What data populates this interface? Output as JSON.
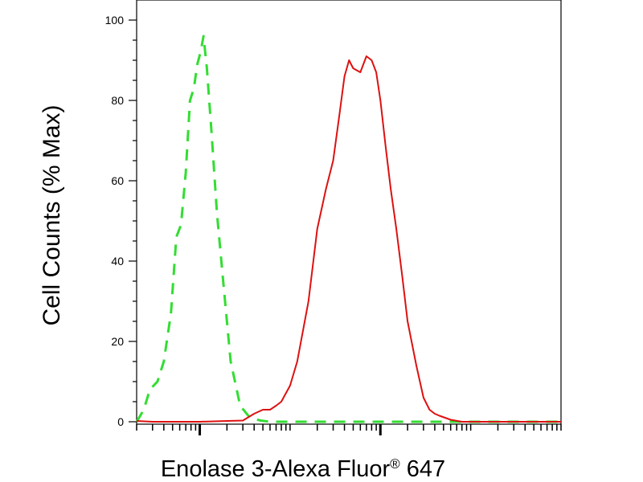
{
  "chart_data": {
    "type": "line",
    "title": "",
    "xlabel": "Enolase 3-Alexa Fluor",
    "xlabel_superscript": "®",
    "xlabel_suffix": " 647",
    "ylabel": "Cell Counts (% Max)",
    "x_scale": "log",
    "xlim": [
      0.2,
      10000
    ],
    "ylim": [
      0,
      100
    ],
    "yticks": [
      0,
      20,
      40,
      60,
      80,
      100
    ],
    "ytick_labels": [
      "0",
      "20",
      "40",
      "60",
      "80",
      "100"
    ],
    "xticks_major": [
      1,
      100
    ],
    "grid": false,
    "legend": "none",
    "series": [
      {
        "color": "#33dd33",
        "dash": "dashed",
        "x": [
          0.2,
          0.24,
          0.28,
          0.34,
          0.4,
          0.48,
          0.55,
          0.62,
          0.7,
          0.78,
          0.86,
          0.94,
          1.02,
          1.1,
          1.2,
          1.35,
          1.55,
          1.8,
          2.2,
          2.8,
          3.6,
          4.7,
          6,
          8,
          12,
          30,
          100,
          1000,
          10000
        ],
        "y": [
          0,
          3,
          8,
          10,
          15,
          27,
          46,
          49,
          62,
          80,
          83,
          89,
          92,
          96,
          88,
          72,
          52,
          36,
          15,
          4,
          1,
          0.3,
          0,
          0,
          0,
          0,
          0,
          0,
          0
        ]
      },
      {
        "color": "#dd1111",
        "dash": "solid",
        "x": [
          0.2,
          0.3,
          0.5,
          1,
          2,
          3,
          4,
          5,
          6,
          7,
          8,
          10,
          12,
          16,
          20,
          25,
          30,
          35,
          40,
          45,
          50,
          60,
          70,
          80,
          90,
          100,
          115,
          130,
          150,
          175,
          200,
          250,
          300,
          350,
          400,
          450,
          600,
          800,
          1500,
          5000,
          10000
        ],
        "y": [
          0.2,
          0,
          0,
          0,
          0.2,
          0.3,
          2,
          3,
          3,
          4,
          5,
          9,
          15,
          30,
          48,
          58,
          65,
          76,
          86,
          90,
          88,
          87,
          91,
          90,
          87,
          80,
          68,
          58,
          48,
          36,
          25,
          14,
          6,
          3,
          2,
          1.5,
          0.5,
          0,
          0,
          0,
          0
        ]
      }
    ]
  }
}
